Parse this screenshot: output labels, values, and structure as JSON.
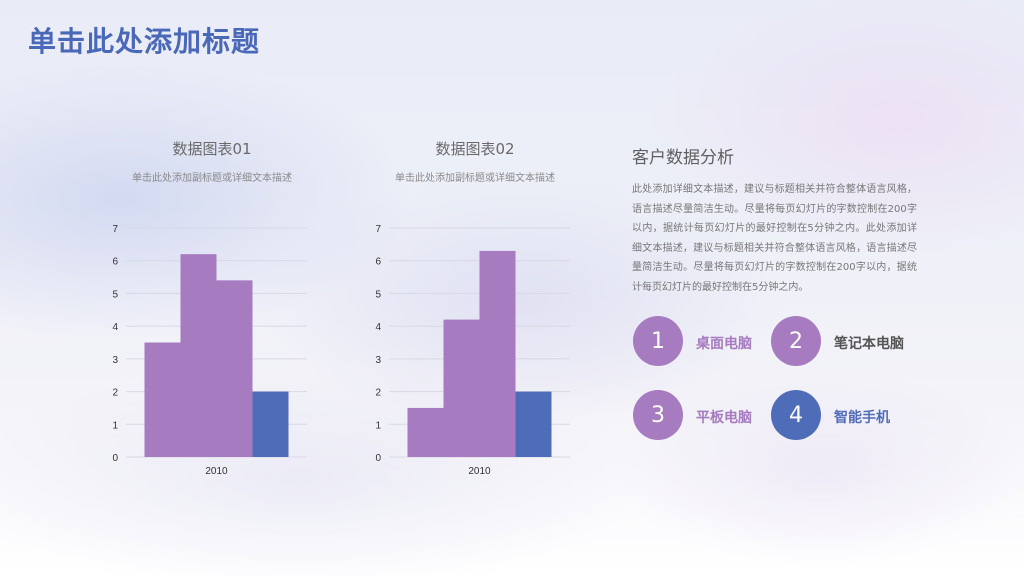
{
  "page": {
    "title": "单击此处添加标题"
  },
  "colors": {
    "purple": "#a67bc0",
    "blue": "#4f6cb9",
    "grid": "#d8d8e4",
    "axis_text": "#333333"
  },
  "charts": [
    {
      "title": "数据图表01",
      "subtitle": "单击此处添加副标题或详细文本描述"
    },
    {
      "title": "数据图表02",
      "subtitle": "单击此处添加副标题或详细文本描述"
    }
  ],
  "chart_data": [
    {
      "type": "bar",
      "title": "数据图表01",
      "subtitle": "单击此处添加副标题或详细文本描述",
      "categories": [
        "2010"
      ],
      "ylim": [
        0,
        7
      ],
      "yticks": [
        0,
        1,
        2,
        3,
        4,
        5,
        6,
        7
      ],
      "grid": true,
      "series": [
        {
          "values": [
            3.5
          ],
          "color": "#a67bc0"
        },
        {
          "values": [
            6.2
          ],
          "color": "#a67bc0"
        },
        {
          "values": [
            5.4
          ],
          "color": "#a67bc0"
        },
        {
          "values": [
            2.0
          ],
          "color": "#4f6cb9"
        }
      ]
    },
    {
      "type": "bar",
      "title": "数据图表02",
      "subtitle": "单击此处添加副标题或详细文本描述",
      "categories": [
        "2010"
      ],
      "ylim": [
        0,
        7
      ],
      "yticks": [
        0,
        1,
        2,
        3,
        4,
        5,
        6,
        7
      ],
      "grid": true,
      "series": [
        {
          "values": [
            1.5
          ],
          "color": "#a67bc0"
        },
        {
          "values": [
            4.2
          ],
          "color": "#a67bc0"
        },
        {
          "values": [
            6.3
          ],
          "color": "#a67bc0"
        },
        {
          "values": [
            2.0
          ],
          "color": "#4f6cb9"
        }
      ]
    }
  ],
  "analysis": {
    "title": "客户数据分析",
    "description": "此处添加详细文本描述，建议与标题相关并符合整体语言风格，语言描述尽量简洁生动。尽量将每页幻灯片的字数控制在200字以内，据统计每页幻灯片的最好控制在5分钟之内。此处添加详细文本描述，建议与标题相关并符合整体语言风格，语言描述尽量简洁生动。尽量将每页幻灯片的字数控制在200字以内，据统计每页幻灯片的最好控制在5分钟之内。",
    "items": [
      {
        "number": "1",
        "label": "桌面电脑",
        "color": "#a67bc0"
      },
      {
        "number": "2",
        "label": "笔记本电脑",
        "color": "#a67bc0"
      },
      {
        "number": "3",
        "label": "平板电脑",
        "color": "#a67bc0"
      },
      {
        "number": "4",
        "label": "智能手机",
        "color": "#4f6cb9"
      }
    ]
  }
}
